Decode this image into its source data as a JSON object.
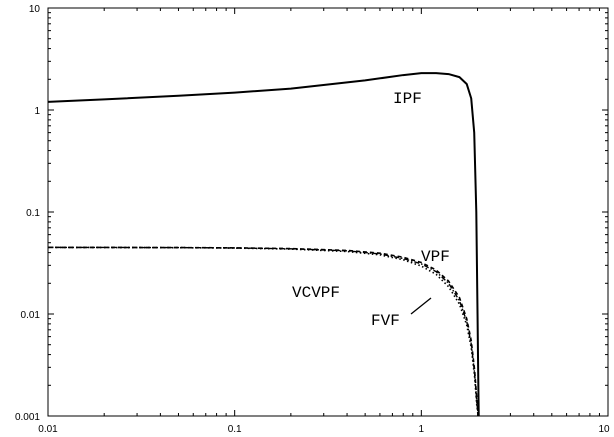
{
  "chart_data": {
    "type": "line",
    "xscale": "log",
    "yscale": "log",
    "xlim": [
      0.01,
      10
    ],
    "ylim": [
      0.001,
      10
    ],
    "xticks": [
      "0.01",
      "0.1",
      "1",
      "10"
    ],
    "yticks": [
      "0.001",
      "0.01",
      "0.1",
      "1",
      "10"
    ],
    "title": "",
    "xlabel": "",
    "ylabel": "",
    "grid": false,
    "series": [
      {
        "name": "IPF",
        "style": "solid",
        "x": [
          0.01,
          0.02,
          0.05,
          0.1,
          0.2,
          0.5,
          0.8,
          1.0,
          1.2,
          1.4,
          1.6,
          1.75,
          1.85,
          1.92,
          1.97,
          2.0,
          2.02,
          2.03
        ],
        "y": [
          1.2,
          1.27,
          1.38,
          1.48,
          1.62,
          1.95,
          2.2,
          2.3,
          2.3,
          2.25,
          2.1,
          1.8,
          1.3,
          0.6,
          0.1,
          0.01,
          0.002,
          0.001
        ]
      },
      {
        "name": "VPF",
        "style": "dashed",
        "x": [
          0.01,
          0.05,
          0.1,
          0.2,
          0.4,
          0.6,
          0.8,
          1.0,
          1.2,
          1.4,
          1.6,
          1.75,
          1.85,
          1.93,
          1.98,
          2.01,
          2.03
        ],
        "y": [
          0.045,
          0.0448,
          0.0445,
          0.0438,
          0.042,
          0.0395,
          0.036,
          0.032,
          0.027,
          0.021,
          0.0145,
          0.009,
          0.0055,
          0.0028,
          0.0015,
          0.0011,
          0.001
        ]
      },
      {
        "name": "VCVPF",
        "style": "dotted",
        "x": [
          0.01,
          0.05,
          0.1,
          0.2,
          0.4,
          0.6,
          0.8,
          1.0,
          1.2,
          1.4,
          1.6,
          1.75,
          1.85,
          1.93,
          1.98,
          2.01,
          2.03
        ],
        "y": [
          0.045,
          0.0447,
          0.0443,
          0.0433,
          0.041,
          0.038,
          0.034,
          0.0295,
          0.0245,
          0.0185,
          0.0125,
          0.0078,
          0.0047,
          0.0024,
          0.0013,
          0.00105,
          0.001
        ]
      },
      {
        "name": "FVF",
        "style": "dashdot",
        "x": [
          0.01,
          0.05,
          0.1,
          0.2,
          0.4,
          0.6,
          0.8,
          1.0,
          1.2,
          1.4,
          1.6,
          1.75,
          1.85,
          1.93,
          1.98,
          2.01,
          2.03
        ],
        "y": [
          0.045,
          0.0448,
          0.0444,
          0.0436,
          0.0416,
          0.0388,
          0.035,
          0.031,
          0.026,
          0.02,
          0.0135,
          0.0085,
          0.0051,
          0.0026,
          0.0014,
          0.00108,
          0.001
        ]
      }
    ],
    "annotations": [
      "IPF",
      "VPF",
      "VCVPF",
      "FVF"
    ]
  }
}
